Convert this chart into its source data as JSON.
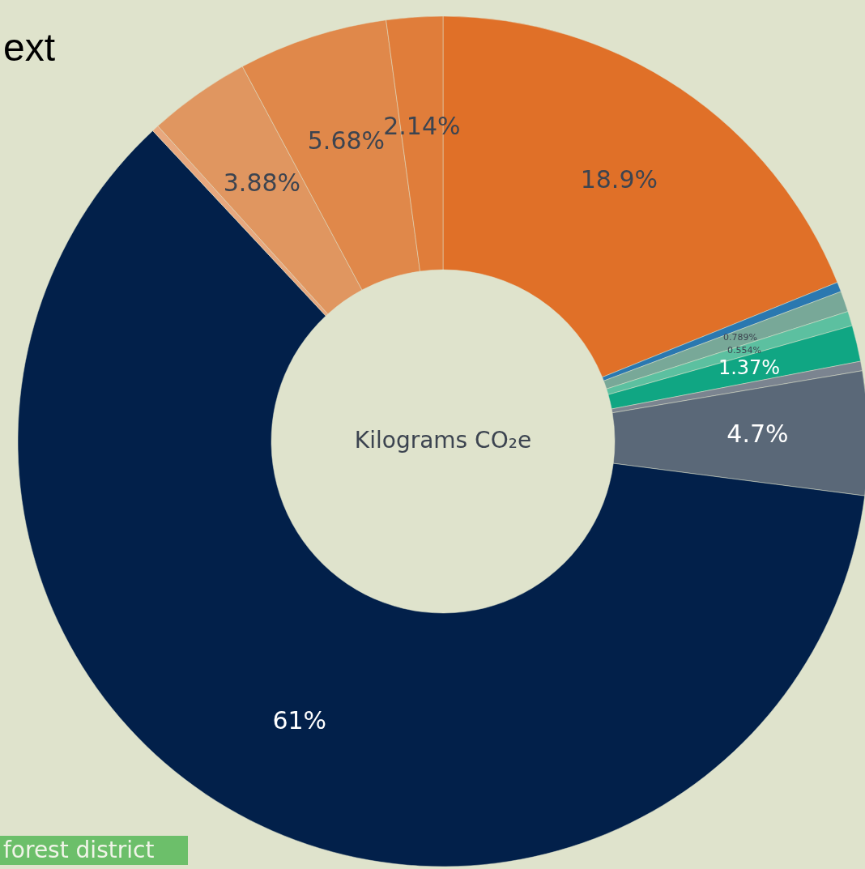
{
  "chart_data": {
    "type": "donut",
    "title": "ext",
    "categories": [
      null,
      null,
      null,
      null,
      null,
      null,
      null,
      null,
      null,
      null,
      null,
      null
    ],
    "values": [
      18.9,
      0.37,
      0.789,
      0.554,
      1.37,
      0.36,
      4.7,
      61,
      0.26,
      3.88,
      5.68,
      2.14
    ],
    "value_labels": [
      "18.9%",
      null,
      "0.789%",
      "0.554%",
      "1.37%",
      null,
      "4.7%",
      "61%",
      null,
      "3.88%",
      "5.68%",
      "2.14%"
    ],
    "colors": [
      "#e07028",
      "#2a78b0",
      "#78a898",
      "#5cc0a0",
      "#10a683",
      "#7b8490",
      "#5a6878",
      "#02204a",
      "#e8a87e",
      "#e09660",
      "#e0884a",
      "#e07d3a"
    ],
    "annotations": [
      "Kilograms CO₂e",
      "forest district"
    ]
  }
}
